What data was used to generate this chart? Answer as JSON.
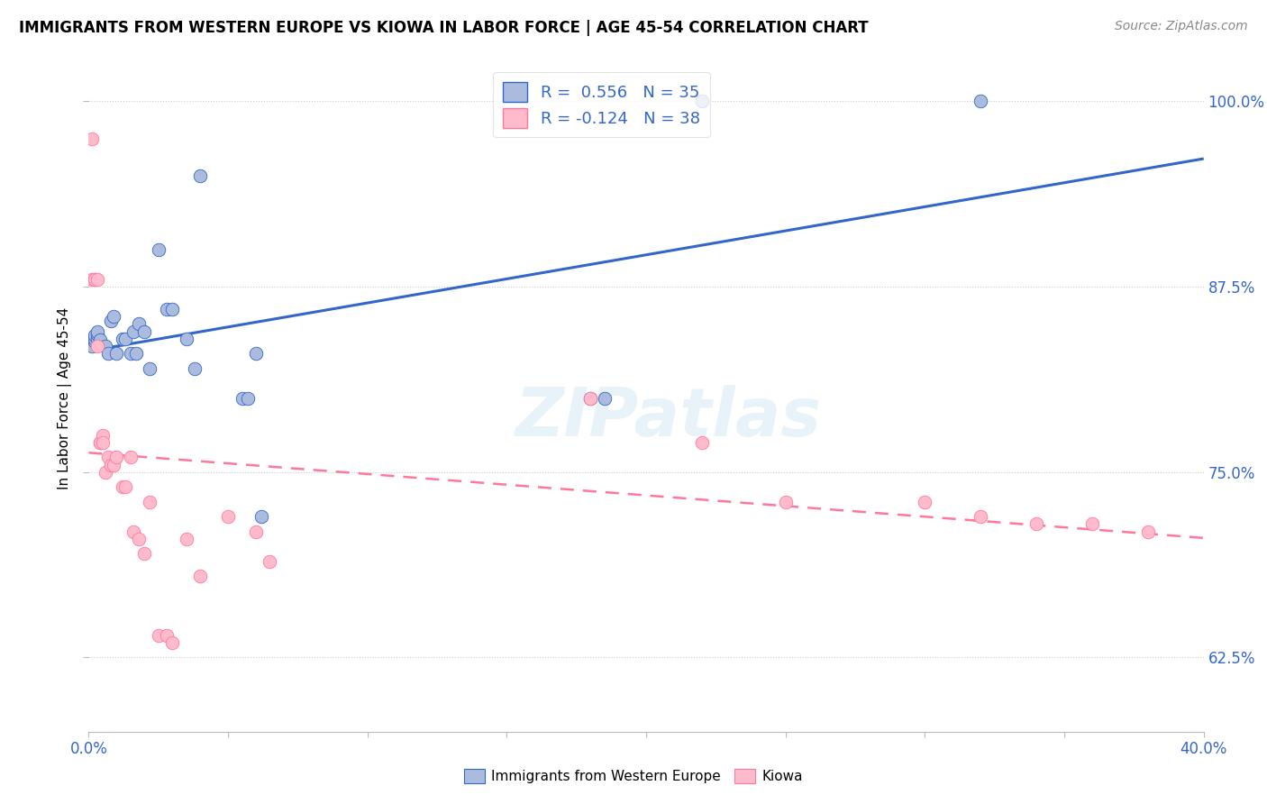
{
  "title": "IMMIGRANTS FROM WESTERN EUROPE VS KIOWA IN LABOR FORCE | AGE 45-54 CORRELATION CHART",
  "source": "Source: ZipAtlas.com",
  "ylabel": "In Labor Force | Age 45-54",
  "xlim": [
    0.0,
    0.4
  ],
  "ylim": [
    0.575,
    1.025
  ],
  "x_ticks": [
    0.0,
    0.05,
    0.1,
    0.15,
    0.2,
    0.25,
    0.3,
    0.35,
    0.4
  ],
  "y_ticks": [
    0.625,
    0.75,
    0.875,
    1.0
  ],
  "y_tick_labels": [
    "62.5%",
    "75.0%",
    "87.5%",
    "100.0%"
  ],
  "blue_R": "0.556",
  "blue_N": "35",
  "pink_R": "-0.124",
  "pink_N": "38",
  "blue_color": "#AABBDD",
  "pink_color": "#FFBBCC",
  "blue_line_color": "#3366CC",
  "pink_line_color": "#FF7799",
  "watermark": "ZIPatlas",
  "blue_x": [
    0.001,
    0.002,
    0.002,
    0.002,
    0.003,
    0.003,
    0.003,
    0.004,
    0.006,
    0.007,
    0.008,
    0.009,
    0.01,
    0.012,
    0.013,
    0.015,
    0.016,
    0.017,
    0.018,
    0.02,
    0.022,
    0.025,
    0.028,
    0.03,
    0.035,
    0.038,
    0.04,
    0.055,
    0.057,
    0.06,
    0.062,
    0.18,
    0.185,
    0.22,
    0.32
  ],
  "blue_y": [
    0.835,
    0.838,
    0.84,
    0.842,
    0.84,
    0.843,
    0.845,
    0.839,
    0.835,
    0.83,
    0.852,
    0.855,
    0.83,
    0.84,
    0.84,
    0.83,
    0.845,
    0.83,
    0.85,
    0.845,
    0.82,
    0.9,
    0.86,
    0.86,
    0.84,
    0.82,
    0.95,
    0.8,
    0.8,
    0.83,
    0.72,
    0.8,
    0.8,
    1.0,
    1.0
  ],
  "pink_x": [
    0.001,
    0.001,
    0.002,
    0.002,
    0.003,
    0.003,
    0.004,
    0.004,
    0.005,
    0.005,
    0.006,
    0.007,
    0.008,
    0.009,
    0.01,
    0.012,
    0.013,
    0.015,
    0.016,
    0.018,
    0.02,
    0.022,
    0.025,
    0.028,
    0.03,
    0.035,
    0.04,
    0.05,
    0.06,
    0.065,
    0.18,
    0.22,
    0.25,
    0.3,
    0.32,
    0.34,
    0.36,
    0.38
  ],
  "pink_y": [
    0.975,
    0.88,
    0.88,
    0.88,
    0.88,
    0.835,
    0.77,
    0.77,
    0.775,
    0.77,
    0.75,
    0.76,
    0.755,
    0.755,
    0.76,
    0.74,
    0.74,
    0.76,
    0.71,
    0.705,
    0.695,
    0.73,
    0.64,
    0.64,
    0.635,
    0.705,
    0.68,
    0.72,
    0.71,
    0.69,
    0.8,
    0.77,
    0.73,
    0.73,
    0.72,
    0.715,
    0.715,
    0.71
  ]
}
